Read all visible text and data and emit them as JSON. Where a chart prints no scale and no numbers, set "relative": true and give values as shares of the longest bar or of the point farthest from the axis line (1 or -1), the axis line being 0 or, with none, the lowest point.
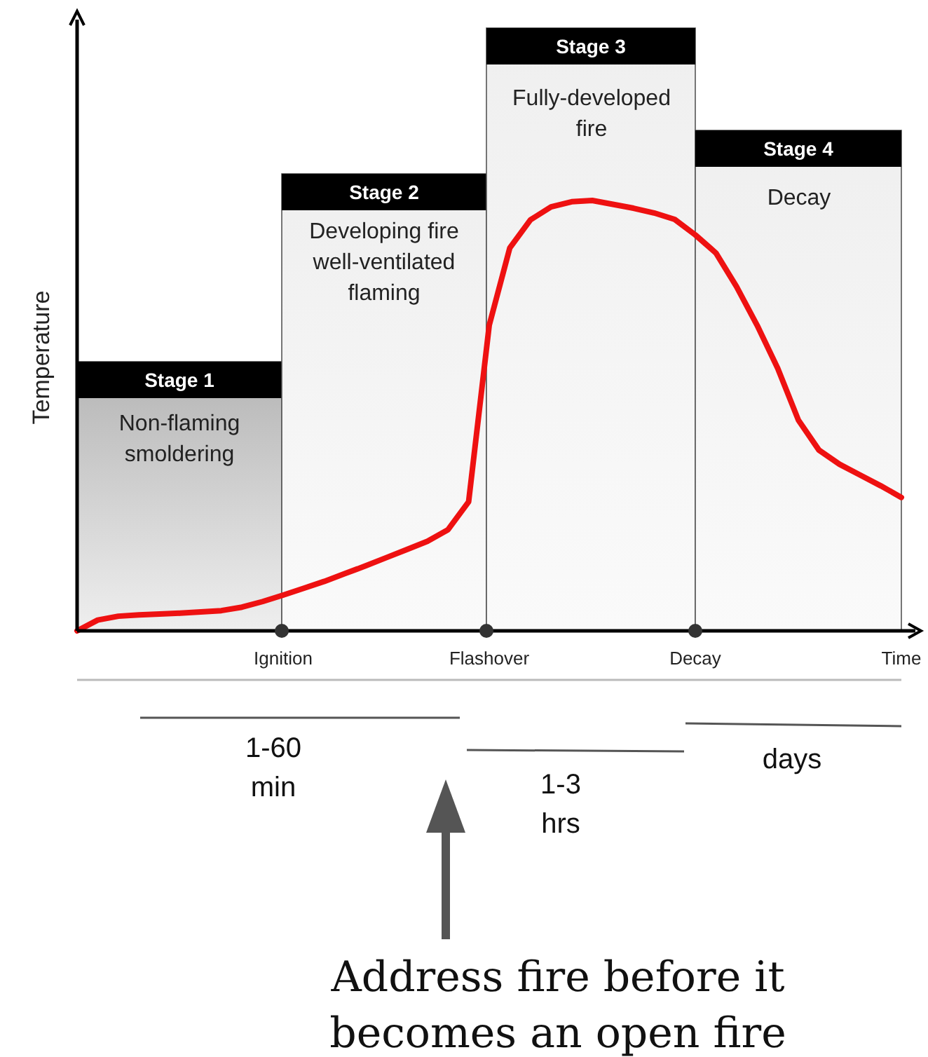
{
  "chart_data": {
    "type": "line",
    "relative": true,
    "ylabel": "Temperature",
    "categories": [
      null,
      null,
      null,
      null,
      null,
      null,
      null,
      null,
      null,
      null,
      "Ignition",
      null,
      null,
      null,
      null,
      null,
      null,
      null,
      null,
      null,
      "Flashover",
      null,
      null,
      null,
      null,
      null,
      null,
      null,
      null,
      null,
      "Decay",
      null,
      null,
      null,
      null,
      null,
      null,
      null,
      null,
      null,
      "Time"
    ],
    "series": [
      {
        "color": "#ee1111",
        "values": [
          0,
          0.025,
          0.034,
          0.037,
          0.039,
          0.041,
          0.044,
          0.047,
          0.055,
          0.068,
          0.083,
          0.099,
          0.115,
          0.133,
          0.151,
          0.17,
          0.189,
          0.208,
          0.235,
          0.3,
          0.71,
          0.89,
          0.955,
          0.985,
          0.997,
          1,
          0.991,
          0.982,
          0.971,
          0.956,
          0.92,
          0.878,
          0.8,
          0.71,
          0.61,
          0.49,
          0.42,
          0.387,
          0.362,
          0.337,
          0.31
        ]
      }
    ],
    "annotations": [
      "Stage 1",
      "Non-flaming\nsmoldering",
      "Stage 2",
      "Developing fire\nwell-ventilated\nflaming",
      "Stage 3",
      "Fully-developed\nfire",
      "Stage 4",
      "Decay",
      "1-60\nmin",
      "1-3\nhrs",
      "days",
      "Address fire before it\nbecomes an open fire"
    ],
    "marker": "none",
    "line_style": "solid"
  }
}
